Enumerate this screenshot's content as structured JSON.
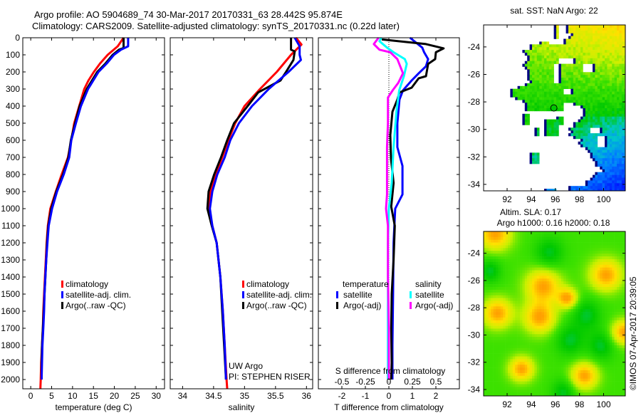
{
  "title": {
    "line1": "Argo profile: AO 5904689_74 30-Mar-2017 20170331_63 28.442S 95.874E",
    "line2": "Climatology: CARS2009. Satellite-adjusted climatology: synTS_20170331.nc (0.22d later)"
  },
  "colors": {
    "climatology": "#ff0000",
    "satellite": "#0000ff",
    "argo": "#000000",
    "s_satellite": "#00ffff",
    "s_argo": "#ff00ff"
  },
  "credit": {
    "line1": "UW Argo",
    "line2": "PI: STEPHEN RISER"
  },
  "timestamp": "©IMOS 07-Apr-2017 20:39:05",
  "chart_data": [
    {
      "id": "temperature",
      "type": "line",
      "xlabel": "temperature (deg C)",
      "ylabel": "depth",
      "xlim": [
        -1.9,
        32
      ],
      "ylim": [
        2054,
        0
      ],
      "xticks": [
        "0",
        "5",
        "10",
        "15",
        "20",
        "25",
        "30"
      ],
      "xtick_values": [
        0,
        5,
        10,
        15,
        20,
        25,
        30
      ],
      "yticks": [
        "0",
        "100",
        "200",
        "300",
        "400",
        "500",
        "600",
        "700",
        "800",
        "900",
        "1000",
        "1100",
        "1200",
        "1300",
        "1400",
        "1500",
        "1600",
        "1700",
        "1800",
        "1900",
        "2000"
      ],
      "ytick_values": [
        0,
        100,
        200,
        300,
        400,
        500,
        600,
        700,
        800,
        900,
        1000,
        1100,
        1200,
        1300,
        1400,
        1500,
        1600,
        1700,
        1800,
        1900,
        2000
      ],
      "legend": [
        "climatology",
        "satellite-adj. clim.",
        "Argo(..raw -QC)"
      ],
      "series": [
        {
          "name": "climatology",
          "color": "#ff0000",
          "points": [
            [
              0,
              22.2
            ],
            [
              50,
              20.8
            ],
            [
              100,
              18.4
            ],
            [
              150,
              16.6
            ],
            [
              200,
              15.1
            ],
            [
              250,
              13.8
            ],
            [
              300,
              12.8
            ],
            [
              400,
              11.6
            ],
            [
              500,
              10.4
            ],
            [
              600,
              9.7
            ],
            [
              700,
              8.9
            ],
            [
              800,
              7.4
            ],
            [
              900,
              6.0
            ],
            [
              1000,
              4.7
            ],
            [
              1100,
              4.1
            ],
            [
              1200,
              3.8
            ],
            [
              1300,
              3.6
            ],
            [
              1400,
              3.4
            ],
            [
              1500,
              3.2
            ],
            [
              1600,
              3.0
            ],
            [
              1700,
              2.9
            ],
            [
              1800,
              2.7
            ],
            [
              1900,
              2.5
            ],
            [
              2000,
              2.4
            ],
            [
              2054,
              2.3
            ]
          ]
        },
        {
          "name": "Argo(..raw -QC)",
          "color": "#000000",
          "points": [
            [
              0,
              22.2
            ],
            [
              60,
              22.2
            ],
            [
              70,
              21.1
            ],
            [
              100,
              19.6
            ],
            [
              150,
              17.9
            ],
            [
              200,
              15.9
            ],
            [
              300,
              13.4
            ],
            [
              400,
              11.7
            ],
            [
              500,
              10.6
            ],
            [
              600,
              9.6
            ],
            [
              700,
              9.0
            ],
            [
              800,
              7.7
            ],
            [
              900,
              6.1
            ],
            [
              1000,
              4.9
            ],
            [
              1100,
              4.2
            ],
            [
              1200,
              3.9
            ],
            [
              1300,
              3.7
            ],
            [
              1400,
              3.5
            ],
            [
              1500,
              3.3
            ],
            [
              1600,
              3.1
            ],
            [
              1700,
              2.9
            ],
            [
              1800,
              2.7
            ],
            [
              1900,
              2.6
            ],
            [
              2000,
              2.6
            ]
          ]
        },
        {
          "name": "satellite-adj. clim.",
          "color": "#0000ff",
          "points": [
            [
              0,
              23.3
            ],
            [
              50,
              23.3
            ],
            [
              70,
              21.6
            ],
            [
              100,
              19.9
            ],
            [
              150,
              18.2
            ],
            [
              200,
              16.2
            ],
            [
              300,
              13.7
            ],
            [
              400,
              12.0
            ],
            [
              500,
              10.8
            ],
            [
              600,
              9.7
            ],
            [
              700,
              9.2
            ],
            [
              800,
              7.9
            ],
            [
              900,
              6.3
            ],
            [
              1000,
              5.1
            ],
            [
              1100,
              4.3
            ],
            [
              1200,
              4.0
            ],
            [
              1300,
              3.7
            ],
            [
              1400,
              3.5
            ],
            [
              1500,
              3.3
            ],
            [
              1600,
              3.2
            ],
            [
              1700,
              3.0
            ],
            [
              1800,
              2.8
            ],
            [
              1900,
              2.7
            ],
            [
              2000,
              2.6
            ]
          ]
        }
      ]
    },
    {
      "id": "salinity",
      "type": "line",
      "xlabel": "salinity",
      "xlim": [
        33.8,
        36.1
      ],
      "ylim": [
        2054,
        0
      ],
      "xticks": [
        "34",
        "34.5",
        "35",
        "35.5",
        "36"
      ],
      "xtick_values": [
        34,
        34.5,
        35,
        35.5,
        36
      ],
      "legend": [
        "climatology",
        "satellite-adj. clim.",
        "Argo(..raw -QC)"
      ],
      "series": [
        {
          "name": "climatology",
          "color": "#ff0000",
          "points": [
            [
              0,
              35.83
            ],
            [
              40,
              35.92
            ],
            [
              100,
              35.75
            ],
            [
              200,
              35.52
            ],
            [
              300,
              35.25
            ],
            [
              400,
              35.0
            ],
            [
              500,
              34.85
            ],
            [
              600,
              34.74
            ],
            [
              700,
              34.64
            ],
            [
              800,
              34.53
            ],
            [
              900,
              34.45
            ],
            [
              1000,
              34.43
            ],
            [
              1100,
              34.48
            ],
            [
              1200,
              34.55
            ],
            [
              1400,
              34.61
            ],
            [
              1600,
              34.65
            ],
            [
              1800,
              34.68
            ],
            [
              2000,
              34.71
            ],
            [
              2054,
              34.72
            ]
          ]
        },
        {
          "name": "Argo(..raw -QC)",
          "color": "#000000",
          "points": [
            [
              0,
              35.75
            ],
            [
              70,
              35.75
            ],
            [
              80,
              35.81
            ],
            [
              130,
              35.79
            ],
            [
              200,
              35.67
            ],
            [
              250,
              35.58
            ],
            [
              320,
              35.22
            ],
            [
              400,
              35.05
            ],
            [
              500,
              34.83
            ],
            [
              600,
              34.72
            ],
            [
              700,
              34.62
            ],
            [
              800,
              34.51
            ],
            [
              900,
              34.42
            ],
            [
              1000,
              34.4
            ],
            [
              1100,
              34.47
            ],
            [
              1200,
              34.55
            ],
            [
              1400,
              34.61
            ],
            [
              1600,
              34.64
            ],
            [
              1800,
              34.67
            ],
            [
              2000,
              34.7
            ]
          ]
        },
        {
          "name": "satellite-adj. clim.",
          "color": "#0000ff",
          "points": [
            [
              0,
              35.81
            ],
            [
              50,
              35.89
            ],
            [
              100,
              35.89
            ],
            [
              130,
              35.91
            ],
            [
              200,
              35.71
            ],
            [
              300,
              35.39
            ],
            [
              400,
              35.12
            ],
            [
              500,
              34.91
            ],
            [
              600,
              34.77
            ],
            [
              700,
              34.68
            ],
            [
              800,
              34.56
            ],
            [
              900,
              34.48
            ],
            [
              1000,
              34.44
            ],
            [
              1100,
              34.48
            ],
            [
              1200,
              34.55
            ],
            [
              1400,
              34.61
            ],
            [
              1600,
              34.65
            ],
            [
              1800,
              34.68
            ],
            [
              2000,
              34.7
            ]
          ]
        }
      ]
    },
    {
      "id": "difference",
      "type": "line",
      "xlabel": "T difference from climatology",
      "xlabel2": "S difference from climatology",
      "xlim": [
        -3,
        3
      ],
      "xlim2": [
        -0.75,
        0.75
      ],
      "ylim": [
        2054,
        0
      ],
      "xticks": [
        "-2",
        "-1",
        "0",
        "1",
        "2"
      ],
      "xtick_values": [
        -2,
        -1,
        0,
        1,
        2
      ],
      "xticks2": [
        "-0.5",
        "-0.25",
        "0",
        "0.25",
        "0.5"
      ],
      "xtick_values2": [
        -0.5,
        -0.25,
        0,
        0.25,
        0.5
      ],
      "legend_t": {
        "title": "temperature",
        "items": [
          "satellite",
          "Argo(-adj)"
        ]
      },
      "legend_s": {
        "title": "salinity",
        "items": [
          "satellite",
          "Argo(-adj)"
        ]
      },
      "series": [
        {
          "name": "T satellite",
          "axis": "T",
          "color": "#0000ff",
          "points": [
            [
              0,
              0.9
            ],
            [
              58,
              1.42
            ],
            [
              85,
              1.5
            ],
            [
              125,
              1.67
            ],
            [
              167,
              1.58
            ],
            [
              208,
              1.27
            ],
            [
              250,
              0.97
            ],
            [
              308,
              0.6
            ],
            [
              362,
              0.45
            ],
            [
              500,
              0.36
            ],
            [
              640,
              0.36
            ],
            [
              750,
              0.58
            ],
            [
              917,
              0.58
            ],
            [
              1000,
              0.27
            ],
            [
              1200,
              0.2
            ],
            [
              1500,
              0.18
            ],
            [
              1800,
              0.15
            ],
            [
              2000,
              0.15
            ]
          ]
        },
        {
          "name": "T Argo(-adj)",
          "axis": "T",
          "color": "#000000",
          "points": [
            [
              10,
              -0.3
            ],
            [
              37,
              1.58
            ],
            [
              62,
              2.33
            ],
            [
              85,
              2.0
            ],
            [
              125,
              1.97
            ],
            [
              153,
              1.67
            ],
            [
              225,
              1.58
            ],
            [
              237,
              1.27
            ],
            [
              292,
              0.97
            ],
            [
              320,
              0.45
            ],
            [
              362,
              0.36
            ],
            [
              433,
              0.15
            ],
            [
              570,
              0.06
            ],
            [
              708,
              0.09
            ],
            [
              850,
              0.2
            ],
            [
              988,
              0.1
            ],
            [
              1100,
              0.25
            ],
            [
              1300,
              0.2
            ],
            [
              1500,
              0.12
            ],
            [
              1700,
              0.1
            ],
            [
              1900,
              0.12
            ],
            [
              2000,
              0.1
            ]
          ]
        },
        {
          "name": "S satellite",
          "axis": "S",
          "color": "#00ffff",
          "points": [
            [
              0,
              -0.08
            ],
            [
              20,
              -0.1
            ],
            [
              58,
              -0.02
            ],
            [
              85,
              0.05
            ],
            [
              125,
              0.17
            ],
            [
              153,
              0.19
            ],
            [
              225,
              0.16
            ],
            [
              308,
              0.11
            ],
            [
              433,
              0.08
            ],
            [
              640,
              0.05
            ],
            [
              850,
              0.03
            ],
            [
              1000,
              0.0
            ],
            [
              1200,
              -0.01
            ],
            [
              1500,
              -0.01
            ],
            [
              1800,
              -0.01
            ],
            [
              2000,
              -0.01
            ]
          ]
        },
        {
          "name": "S Argo(-adj)",
          "axis": "S",
          "color": "#ff00ff",
          "points": [
            [
              0,
              -0.11
            ],
            [
              37,
              -0.16
            ],
            [
              70,
              -0.1
            ],
            [
              85,
              0.015
            ],
            [
              125,
              0.09
            ],
            [
              208,
              0.15
            ],
            [
              264,
              0.1
            ],
            [
              308,
              0.04
            ],
            [
              350,
              -0.01
            ],
            [
              500,
              -0.01
            ],
            [
              640,
              -0.02
            ],
            [
              917,
              -0.02
            ],
            [
              1000,
              -0.03
            ],
            [
              1100,
              -0.01
            ],
            [
              1400,
              -0.01
            ],
            [
              1700,
              0.0
            ],
            [
              2000,
              0.0
            ]
          ]
        }
      ]
    },
    {
      "id": "sst-map",
      "type": "heatmap",
      "title": "sat. SST: NaN Argo: 22",
      "xlim": [
        90.05,
        101.8
      ],
      "ylim": [
        -34.47,
        -22.4
      ],
      "xticks": [
        "92",
        "94",
        "96",
        "98",
        "100"
      ],
      "xtick_values": [
        92,
        94,
        96,
        98,
        100
      ],
      "yticks": [
        "-24",
        "-26",
        "-28",
        "-30",
        "-32",
        "-34"
      ],
      "ytick_values": [
        -24,
        -26,
        -28,
        -30,
        -32,
        -34
      ],
      "argo_position": {
        "lon": 95.874,
        "lat": -28.442
      }
    },
    {
      "id": "sla-map",
      "type": "heatmap",
      "title": "Altim. SLA: 0.17",
      "subtitle": "Argo h1000: 0.16 h2000: 0.18",
      "xlim": [
        90.05,
        101.8
      ],
      "ylim": [
        -34.47,
        -22.4
      ],
      "xticks": [
        "92",
        "94",
        "96",
        "98",
        "100"
      ],
      "xtick_values": [
        92,
        94,
        96,
        98,
        100
      ],
      "yticks": [
        "-24",
        "-26",
        "-28",
        "-30",
        "-32",
        "-34"
      ],
      "ytick_values": [
        -24,
        -26,
        -28,
        -30,
        -32,
        -34
      ]
    }
  ]
}
